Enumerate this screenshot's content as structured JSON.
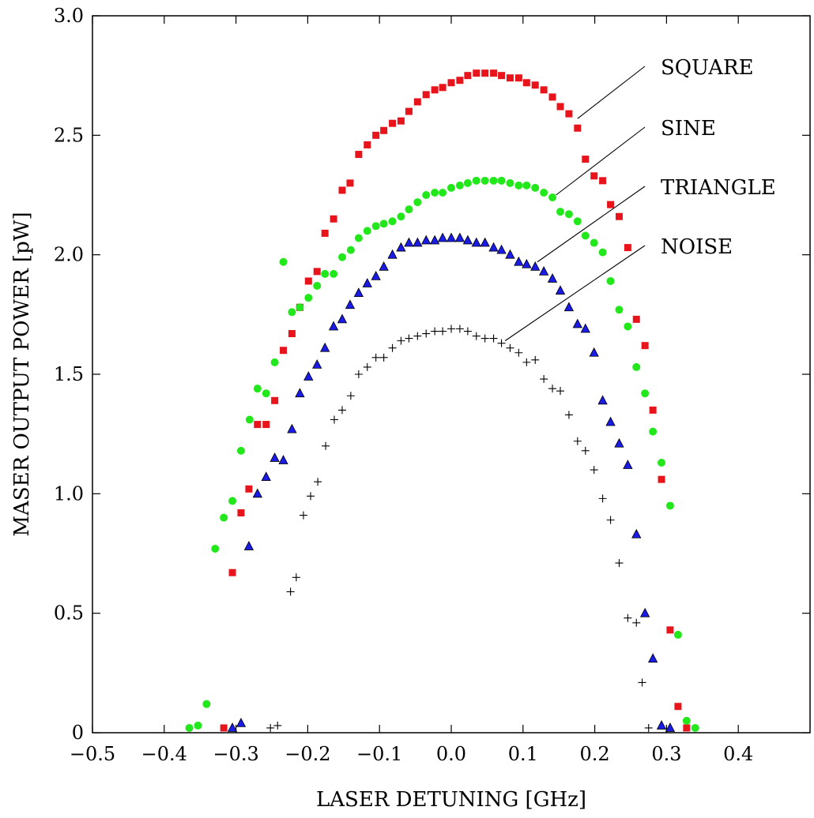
{
  "chart_data": {
    "type": "scatter",
    "title": "",
    "xlabel": "LASER DETUNING [GHz]",
    "ylabel": "MASER OUTPUT POWER [pW]",
    "xlim": [
      -0.5,
      0.5
    ],
    "ylim": [
      0,
      3.0
    ],
    "x_ticks": [
      -0.5,
      -0.4,
      -0.3,
      -0.2,
      -0.1,
      0.0,
      0.1,
      0.2,
      0.3,
      0.4
    ],
    "x_tick_labels": [
      "−0.5",
      "−0.4",
      "−0.3",
      "−0.2",
      "−0.1",
      "0.0",
      "0.1",
      "0.2",
      "0.3",
      "0.4"
    ],
    "y_ticks": [
      0,
      0.5,
      1.0,
      1.5,
      2.0,
      2.5,
      3.0
    ],
    "y_tick_labels": [
      "0",
      "0.5",
      "1.0",
      "1.5",
      "2.0",
      "2.5",
      "3.0"
    ],
    "grid": false,
    "series": [
      {
        "name": "SQUARE",
        "marker": "square",
        "color": "#e8141b",
        "label_anchor": [
          0.176,
          2.57
        ],
        "points": [
          [
            -0.317,
            0.02
          ],
          [
            -0.305,
            0.67
          ],
          [
            -0.293,
            0.92
          ],
          [
            -0.282,
            1.02
          ],
          [
            -0.27,
            1.29
          ],
          [
            -0.258,
            1.29
          ],
          [
            -0.246,
            1.39
          ],
          [
            -0.234,
            1.6
          ],
          [
            -0.222,
            1.67
          ],
          [
            -0.211,
            1.78
          ],
          [
            -0.199,
            1.89
          ],
          [
            -0.187,
            1.93
          ],
          [
            -0.176,
            2.09
          ],
          [
            -0.164,
            2.15
          ],
          [
            -0.152,
            2.27
          ],
          [
            -0.141,
            2.3
          ],
          [
            -0.129,
            2.42
          ],
          [
            -0.117,
            2.46
          ],
          [
            -0.105,
            2.5
          ],
          [
            -0.094,
            2.52
          ],
          [
            -0.082,
            2.55
          ],
          [
            -0.07,
            2.56
          ],
          [
            -0.059,
            2.6
          ],
          [
            -0.047,
            2.64
          ],
          [
            -0.035,
            2.67
          ],
          [
            -0.023,
            2.69
          ],
          [
            -0.012,
            2.7
          ],
          [
            0.0,
            2.72
          ],
          [
            0.012,
            2.73
          ],
          [
            0.023,
            2.75
          ],
          [
            0.035,
            2.76
          ],
          [
            0.047,
            2.76
          ],
          [
            0.059,
            2.76
          ],
          [
            0.07,
            2.75
          ],
          [
            0.082,
            2.74
          ],
          [
            0.094,
            2.74
          ],
          [
            0.105,
            2.72
          ],
          [
            0.117,
            2.71
          ],
          [
            0.129,
            2.69
          ],
          [
            0.141,
            2.66
          ],
          [
            0.152,
            2.62
          ],
          [
            0.164,
            2.59
          ],
          [
            0.176,
            2.53
          ],
          [
            0.187,
            2.4
          ],
          [
            0.199,
            2.33
          ],
          [
            0.211,
            2.31
          ],
          [
            0.222,
            2.21
          ],
          [
            0.234,
            2.16
          ],
          [
            0.246,
            2.03
          ],
          [
            0.258,
            1.73
          ],
          [
            0.27,
            1.62
          ],
          [
            0.281,
            1.35
          ],
          [
            0.293,
            1.06
          ],
          [
            0.305,
            0.43
          ],
          [
            0.316,
            0.11
          ],
          [
            0.328,
            0.02
          ]
        ]
      },
      {
        "name": "SINE",
        "marker": "circle",
        "color": "#22e81b",
        "label_anchor": [
          0.146,
          2.25
        ],
        "points": [
          [
            -0.365,
            0.02
          ],
          [
            -0.353,
            0.03
          ],
          [
            -0.341,
            0.12
          ],
          [
            -0.329,
            0.77
          ],
          [
            -0.317,
            0.9
          ],
          [
            -0.305,
            0.97
          ],
          [
            -0.293,
            1.18
          ],
          [
            -0.281,
            1.31
          ],
          [
            -0.27,
            1.44
          ],
          [
            -0.258,
            1.42
          ],
          [
            -0.246,
            1.55
          ],
          [
            -0.234,
            1.97
          ],
          [
            -0.222,
            1.76
          ],
          [
            -0.211,
            1.78
          ],
          [
            -0.199,
            1.82
          ],
          [
            -0.187,
            1.87
          ],
          [
            -0.176,
            1.92
          ],
          [
            -0.164,
            1.92
          ],
          [
            -0.152,
            1.99
          ],
          [
            -0.14,
            2.02
          ],
          [
            -0.129,
            2.07
          ],
          [
            -0.117,
            2.1
          ],
          [
            -0.105,
            2.12
          ],
          [
            -0.094,
            2.13
          ],
          [
            -0.082,
            2.14
          ],
          [
            -0.07,
            2.16
          ],
          [
            -0.059,
            2.19
          ],
          [
            -0.047,
            2.22
          ],
          [
            -0.035,
            2.25
          ],
          [
            -0.023,
            2.26
          ],
          [
            -0.012,
            2.26
          ],
          [
            0.0,
            2.28
          ],
          [
            0.012,
            2.29
          ],
          [
            0.023,
            2.3
          ],
          [
            0.035,
            2.31
          ],
          [
            0.047,
            2.31
          ],
          [
            0.059,
            2.31
          ],
          [
            0.07,
            2.31
          ],
          [
            0.082,
            2.3
          ],
          [
            0.094,
            2.29
          ],
          [
            0.105,
            2.29
          ],
          [
            0.117,
            2.28
          ],
          [
            0.129,
            2.26
          ],
          [
            0.141,
            2.24
          ],
          [
            0.152,
            2.18
          ],
          [
            0.164,
            2.17
          ],
          [
            0.176,
            2.14
          ],
          [
            0.187,
            2.08
          ],
          [
            0.199,
            2.05
          ],
          [
            0.211,
            2.01
          ],
          [
            0.222,
            1.89
          ],
          [
            0.234,
            1.77
          ],
          [
            0.246,
            1.7
          ],
          [
            0.258,
            1.53
          ],
          [
            0.27,
            1.42
          ],
          [
            0.281,
            1.26
          ],
          [
            0.293,
            1.13
          ],
          [
            0.305,
            0.95
          ],
          [
            0.316,
            0.41
          ],
          [
            0.328,
            0.05
          ],
          [
            0.34,
            0.02
          ]
        ]
      },
      {
        "name": "TRIANGLE",
        "marker": "triangle",
        "color": "#1b1be8",
        "label_anchor": [
          0.12,
          1.97
        ],
        "points": [
          [
            -0.305,
            0.02
          ],
          [
            -0.293,
            0.04
          ],
          [
            -0.282,
            0.78
          ],
          [
            -0.27,
            1.0
          ],
          [
            -0.258,
            1.07
          ],
          [
            -0.246,
            1.15
          ],
          [
            -0.234,
            1.14
          ],
          [
            -0.222,
            1.27
          ],
          [
            -0.211,
            1.42
          ],
          [
            -0.199,
            1.49
          ],
          [
            -0.187,
            1.54
          ],
          [
            -0.176,
            1.61
          ],
          [
            -0.164,
            1.7
          ],
          [
            -0.152,
            1.73
          ],
          [
            -0.141,
            1.79
          ],
          [
            -0.129,
            1.84
          ],
          [
            -0.117,
            1.88
          ],
          [
            -0.105,
            1.91
          ],
          [
            -0.094,
            1.95
          ],
          [
            -0.082,
            2.0
          ],
          [
            -0.07,
            2.03
          ],
          [
            -0.059,
            2.05
          ],
          [
            -0.047,
            2.05
          ],
          [
            -0.035,
            2.06
          ],
          [
            -0.023,
            2.06
          ],
          [
            -0.012,
            2.07
          ],
          [
            0.0,
            2.07
          ],
          [
            0.012,
            2.07
          ],
          [
            0.023,
            2.06
          ],
          [
            0.035,
            2.05
          ],
          [
            0.047,
            2.05
          ],
          [
            0.059,
            2.03
          ],
          [
            0.07,
            2.02
          ],
          [
            0.082,
            2.0
          ],
          [
            0.094,
            1.97
          ],
          [
            0.105,
            1.96
          ],
          [
            0.117,
            1.95
          ],
          [
            0.129,
            1.93
          ],
          [
            0.141,
            1.9
          ],
          [
            0.152,
            1.85
          ],
          [
            0.164,
            1.78
          ],
          [
            0.176,
            1.71
          ],
          [
            0.187,
            1.69
          ],
          [
            0.199,
            1.59
          ],
          [
            0.211,
            1.39
          ],
          [
            0.222,
            1.3
          ],
          [
            0.234,
            1.21
          ],
          [
            0.246,
            1.12
          ],
          [
            0.258,
            0.83
          ],
          [
            0.27,
            0.5
          ],
          [
            0.281,
            0.31
          ],
          [
            0.293,
            0.03
          ],
          [
            0.305,
            0.02
          ]
        ]
      },
      {
        "name": "NOISE",
        "marker": "plus",
        "color": "#000000",
        "label_anchor": [
          0.075,
          1.64
        ],
        "points": [
          [
            -0.252,
            0.02
          ],
          [
            -0.242,
            0.03
          ],
          [
            -0.224,
            0.59
          ],
          [
            -0.216,
            0.65
          ],
          [
            -0.206,
            0.91
          ],
          [
            -0.196,
            0.99
          ],
          [
            -0.186,
            1.05
          ],
          [
            -0.175,
            1.2
          ],
          [
            -0.163,
            1.31
          ],
          [
            -0.152,
            1.35
          ],
          [
            -0.14,
            1.41
          ],
          [
            -0.129,
            1.5
          ],
          [
            -0.117,
            1.53
          ],
          [
            -0.105,
            1.57
          ],
          [
            -0.094,
            1.57
          ],
          [
            -0.082,
            1.61
          ],
          [
            -0.07,
            1.64
          ],
          [
            -0.059,
            1.65
          ],
          [
            -0.047,
            1.66
          ],
          [
            -0.035,
            1.67
          ],
          [
            -0.023,
            1.68
          ],
          [
            -0.012,
            1.68
          ],
          [
            0.0,
            1.69
          ],
          [
            0.012,
            1.69
          ],
          [
            0.023,
            1.68
          ],
          [
            0.035,
            1.66
          ],
          [
            0.047,
            1.65
          ],
          [
            0.059,
            1.65
          ],
          [
            0.07,
            1.63
          ],
          [
            0.082,
            1.61
          ],
          [
            0.094,
            1.59
          ],
          [
            0.105,
            1.55
          ],
          [
            0.117,
            1.56
          ],
          [
            0.129,
            1.48
          ],
          [
            0.141,
            1.44
          ],
          [
            0.152,
            1.43
          ],
          [
            0.164,
            1.33
          ],
          [
            0.176,
            1.22
          ],
          [
            0.187,
            1.18
          ],
          [
            0.199,
            1.1
          ],
          [
            0.211,
            0.98
          ],
          [
            0.222,
            0.89
          ],
          [
            0.234,
            0.71
          ],
          [
            0.246,
            0.48
          ],
          [
            0.258,
            0.46
          ],
          [
            0.266,
            0.21
          ],
          [
            0.275,
            0.02
          ]
        ]
      }
    ]
  }
}
